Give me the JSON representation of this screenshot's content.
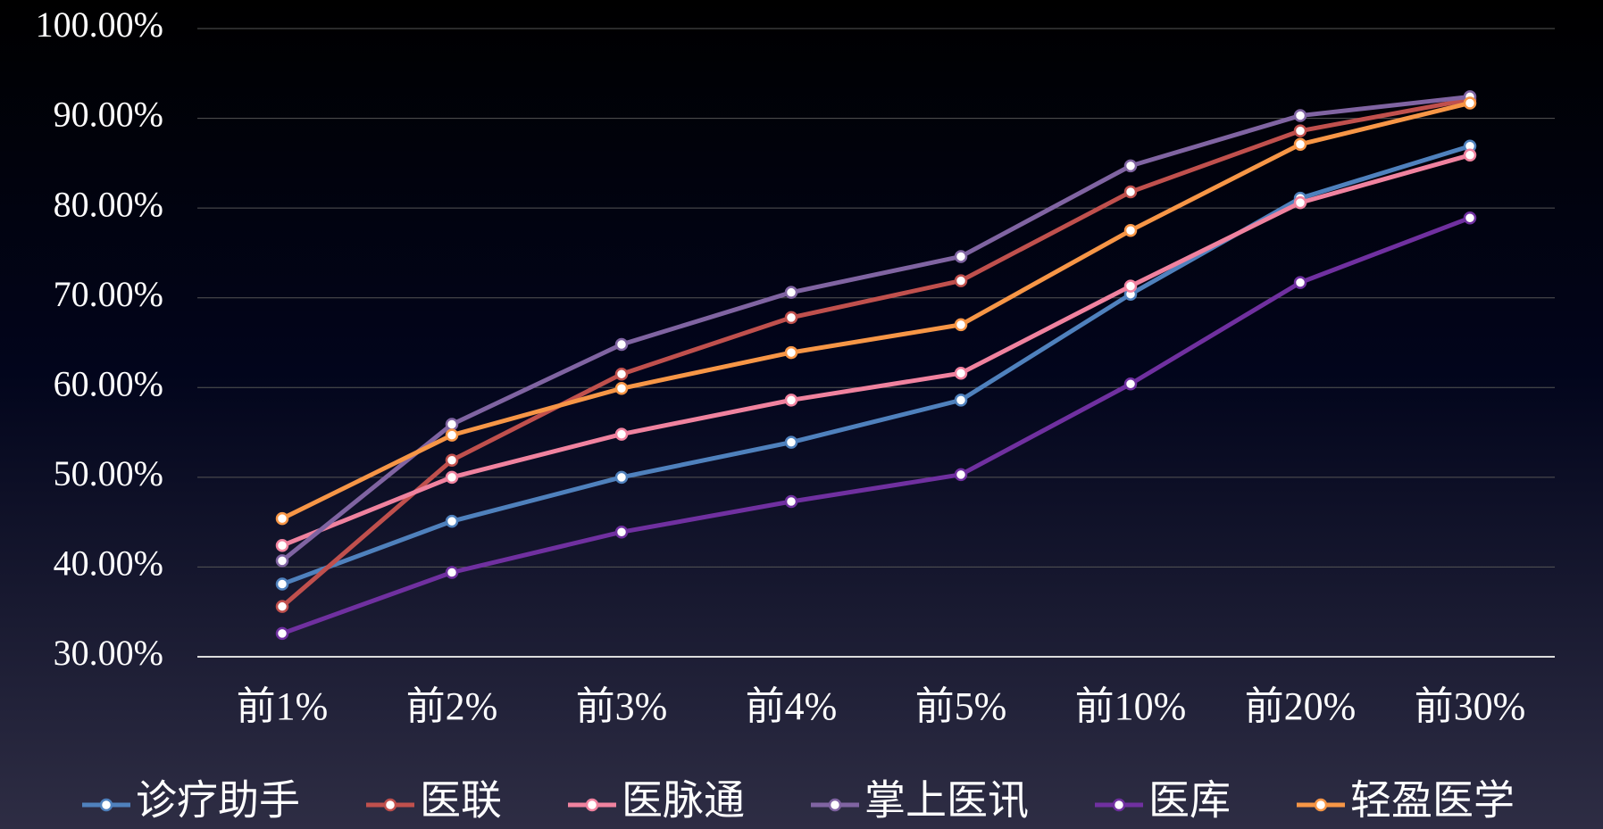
{
  "chart_data": {
    "type": "line",
    "categories": [
      "前1%",
      "前2%",
      "前3%",
      "前4%",
      "前5%",
      "前10%",
      "前20%",
      "前30%"
    ],
    "series": [
      {
        "name": "诊疗助手",
        "color": "#4f81bd",
        "values": [
          38.1,
          45.1,
          50.0,
          53.9,
          58.6,
          70.4,
          81.1,
          86.9
        ]
      },
      {
        "name": "医联",
        "color": "#c0504d",
        "values": [
          35.6,
          51.9,
          61.5,
          67.8,
          71.9,
          81.8,
          88.6,
          92.1
        ]
      },
      {
        "name": "医脉通",
        "color": "#f0829f",
        "values": [
          42.4,
          50.0,
          54.8,
          58.6,
          61.6,
          71.3,
          80.6,
          85.9
        ]
      },
      {
        "name": "掌上医讯",
        "color": "#8064a2",
        "values": [
          40.7,
          55.9,
          64.8,
          70.6,
          74.6,
          84.7,
          90.3,
          92.4
        ]
      },
      {
        "name": "医库",
        "color": "#7030a0",
        "values": [
          32.6,
          39.4,
          43.9,
          47.3,
          50.3,
          60.4,
          71.7,
          78.9
        ]
      },
      {
        "name": "轻盈医学",
        "color": "#f79646",
        "values": [
          45.4,
          54.7,
          59.9,
          63.9,
          67.0,
          77.5,
          87.1,
          91.7
        ]
      }
    ],
    "ylim": [
      30,
      100
    ],
    "yticks": [
      {
        "value": 30,
        "label": "30.00%"
      },
      {
        "value": 40,
        "label": "40.00%"
      },
      {
        "value": 50,
        "label": "50.00%"
      },
      {
        "value": 60,
        "label": "60.00%"
      },
      {
        "value": 70,
        "label": "70.00%"
      },
      {
        "value": 80,
        "label": "80.00%"
      },
      {
        "value": 90,
        "label": "90.00%"
      },
      {
        "value": 100,
        "label": "100.00%"
      }
    ],
    "grid": true,
    "legend": "bottom"
  }
}
